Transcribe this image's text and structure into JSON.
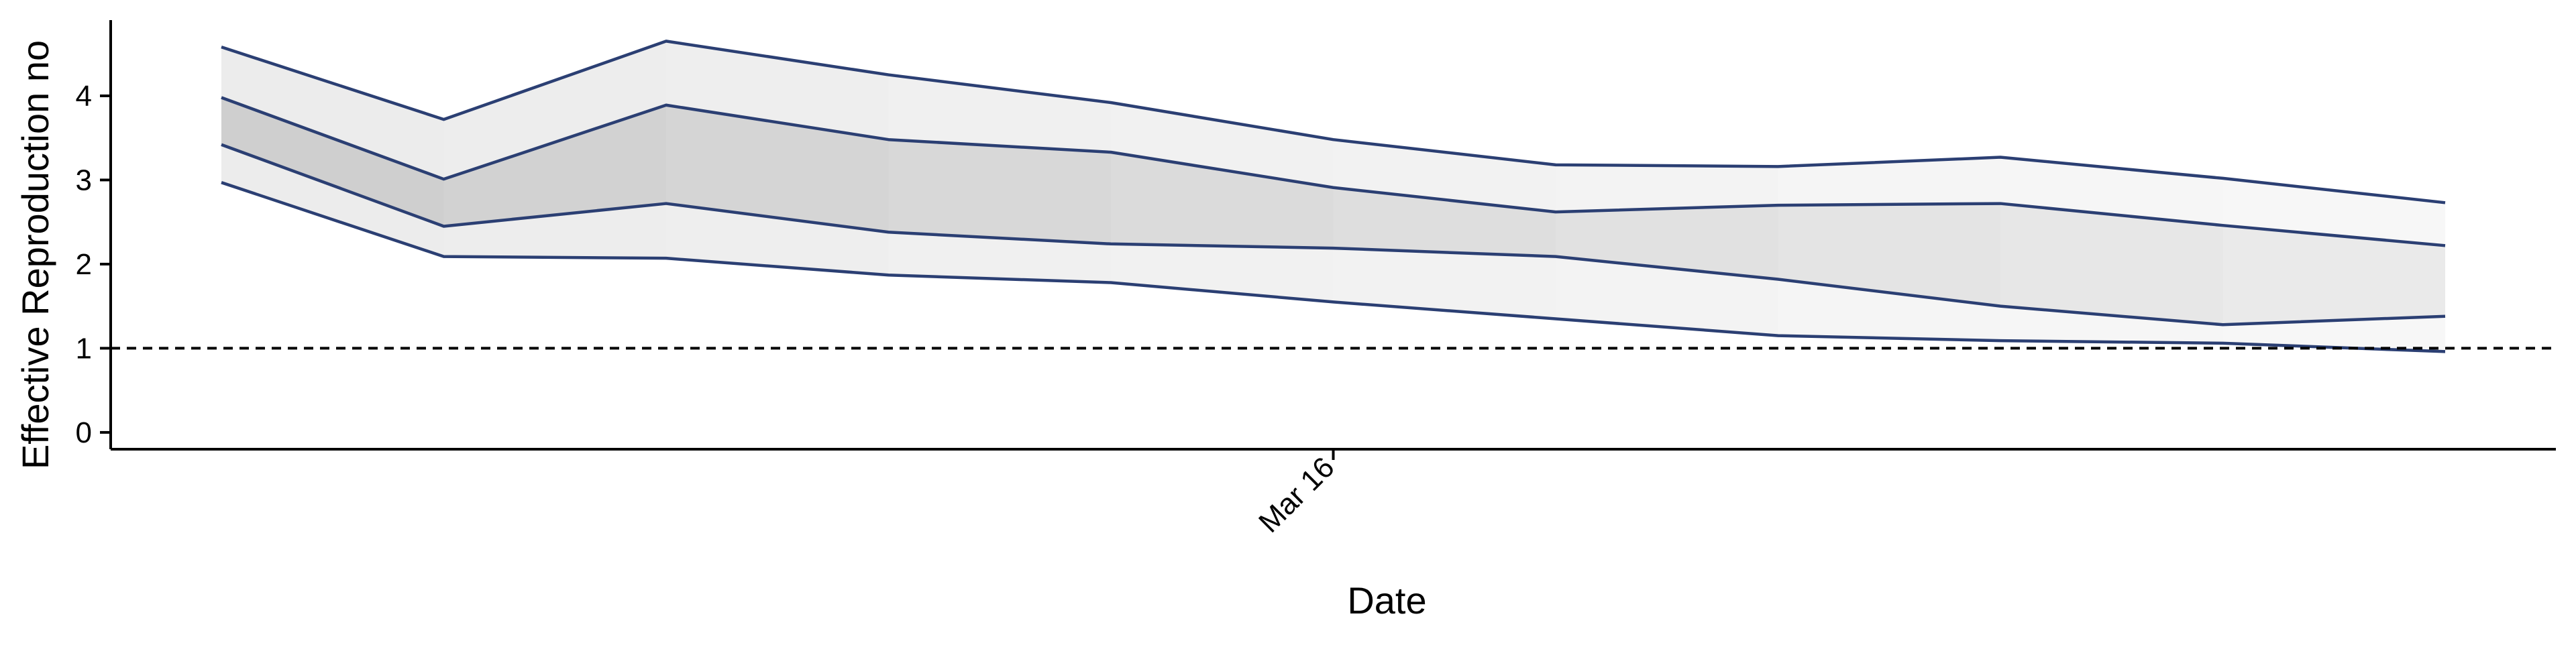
{
  "chart_data": {
    "type": "area",
    "xlabel": "Date",
    "ylabel": "Effective Reproduction no",
    "x": [
      "2020-03-11",
      "2020-03-12",
      "2020-03-13",
      "2020-03-14",
      "2020-03-15",
      "2020-03-16",
      "2020-03-17",
      "2020-03-18",
      "2020-03-19",
      "2020-03-20",
      "2020-03-21"
    ],
    "x_tick_labels": [
      {
        "x": "2020-03-16",
        "label": "Mar 16"
      }
    ],
    "series": [
      {
        "role": "upper_outer",
        "values": [
          4.58,
          3.72,
          4.65,
          4.25,
          3.92,
          3.48,
          3.18,
          3.16,
          3.27,
          3.02,
          2.73
        ]
      },
      {
        "role": "upper_inner",
        "values": [
          3.98,
          3.01,
          3.89,
          3.48,
          3.33,
          2.91,
          2.62,
          2.7,
          2.72,
          2.46,
          2.22
        ]
      },
      {
        "role": "lower_inner",
        "values": [
          3.42,
          2.45,
          2.72,
          2.38,
          2.24,
          2.19,
          2.09,
          1.82,
          1.5,
          1.28,
          1.38
        ]
      },
      {
        "role": "lower_outer",
        "values": [
          2.97,
          2.09,
          2.07,
          1.87,
          1.78,
          1.55,
          1.35,
          1.15,
          1.09,
          1.06,
          0.96
        ]
      }
    ],
    "ylim": [
      -0.2,
      4.9
    ],
    "y_ticks": [
      0,
      1,
      2,
      3,
      4
    ],
    "reference_line": {
      "y": 1,
      "style": "dashed"
    },
    "colors": {
      "line": "#2b3f73",
      "inner_band": "#cfcfcf",
      "outer_band": "#ececec",
      "axis": "#000000",
      "reference": "#000000"
    },
    "band_fade": "bands lighten toward later dates",
    "grid": false,
    "legend": "none"
  }
}
